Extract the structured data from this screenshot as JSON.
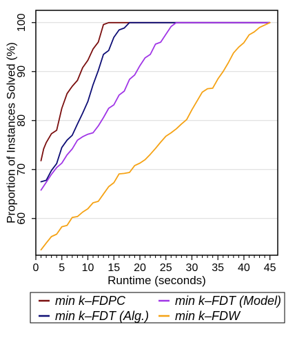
{
  "chart_data": {
    "type": "line",
    "xlabel": "Runtime (seconds)",
    "ylabel": "Proportion of Instances Solved (%)",
    "xlim": [
      0,
      46.5
    ],
    "ylim": [
      52.5,
      102.5
    ],
    "xticks": [
      0,
      5,
      10,
      15,
      20,
      25,
      30,
      35,
      40,
      45
    ],
    "yticks": [
      60,
      70,
      80,
      90,
      100
    ],
    "minor_xticks": [
      1,
      2,
      3,
      4,
      6,
      7,
      8,
      9,
      11,
      12,
      13,
      14,
      16,
      17,
      18,
      19,
      21,
      22,
      23,
      24,
      26,
      27,
      28,
      29,
      31,
      32,
      33,
      34,
      36,
      37,
      38,
      39,
      41,
      42,
      43,
      44
    ],
    "grid": "horizontal",
    "legend_position": "bottom",
    "series": [
      {
        "name": "min k–FDPC",
        "color": "#7a0e0e",
        "x": [
          1,
          1.5,
          2,
          3,
          4,
          5,
          6,
          7,
          8,
          9,
          10,
          11,
          12,
          13,
          14,
          15,
          45
        ],
        "y": [
          71.8,
          74.2,
          75.5,
          77.3,
          78,
          82.5,
          85.5,
          87,
          88.2,
          90.8,
          92.3,
          94.6,
          96,
          99.6,
          100,
          100,
          100
        ]
      },
      {
        "name": "min k–FDT (Alg.)",
        "color": "#0d0d75",
        "x": [
          1,
          2,
          3,
          4,
          5,
          6,
          7,
          8,
          9,
          10,
          11,
          12,
          13,
          14,
          15,
          16,
          17,
          18,
          19,
          45
        ],
        "y": [
          67.5,
          67.8,
          69.8,
          71.2,
          74.5,
          76,
          77,
          79.3,
          81.5,
          83.9,
          87.3,
          90.2,
          93.5,
          94.3,
          97,
          98.5,
          98.9,
          100,
          100,
          100
        ]
      },
      {
        "name": "min k–FDT (Model)",
        "color": "#a035e6",
        "x": [
          1,
          2,
          3,
          4,
          5,
          6,
          7,
          8,
          9,
          10,
          11,
          12,
          13,
          14,
          15,
          16,
          17,
          18,
          19,
          20,
          21,
          22,
          23,
          24,
          25,
          26,
          27,
          45
        ],
        "y": [
          65.8,
          67.4,
          69,
          70.4,
          71.3,
          73,
          74.2,
          76,
          76.7,
          77.2,
          77.5,
          78.9,
          80.6,
          82.5,
          83.2,
          85.2,
          86,
          88.4,
          89.3,
          91.2,
          92.8,
          93.5,
          95.6,
          96,
          97.6,
          99.2,
          100,
          100
        ]
      },
      {
        "name": "min k–FDW",
        "color": "#f5a214",
        "x": [
          1,
          2,
          3,
          4,
          5,
          6,
          7,
          8,
          9,
          10,
          11,
          12,
          13,
          14,
          15,
          16,
          17,
          18,
          19,
          20,
          21,
          22,
          23,
          24,
          25,
          26,
          27,
          28,
          29,
          30,
          31,
          32,
          33,
          34,
          35,
          36,
          37,
          38,
          39,
          40,
          41,
          42,
          43,
          44,
          45
        ],
        "y": [
          53.6,
          55,
          56.3,
          56.8,
          58.3,
          58.6,
          60.2,
          60.4,
          61.3,
          62,
          63.2,
          63.5,
          65,
          66.5,
          67.3,
          69.1,
          69.2,
          69.4,
          70.8,
          71.3,
          72,
          73.1,
          74.3,
          75.6,
          76.8,
          77.5,
          78.3,
          79.3,
          80.2,
          82.2,
          84,
          85.8,
          86.5,
          86.6,
          88.5,
          90,
          91.8,
          93.8,
          95,
          95.9,
          97.5,
          98.1,
          99,
          99.5,
          100
        ]
      }
    ]
  }
}
